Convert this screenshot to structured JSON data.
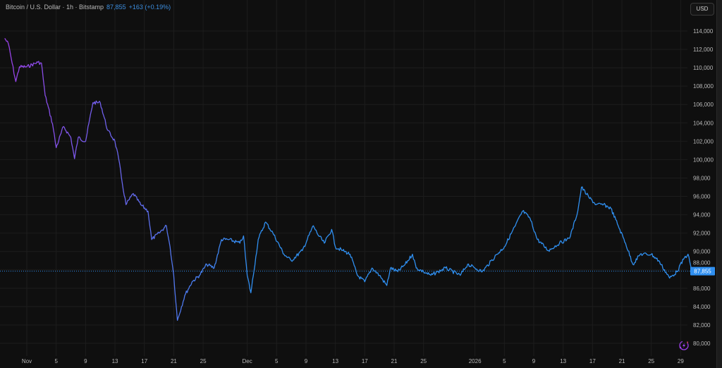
{
  "header": {
    "symbol_title": "Bitcoin / U.S. Dollar · 1h · Bitstamp",
    "last_price": "87,855",
    "change": "+163 (+0.19%)"
  },
  "currency_button": "USD",
  "colors": {
    "background": "#0f0f0f",
    "line_start": "#9b3fe6",
    "line_end": "#2f8ff0",
    "price_label": "#2f8ff0",
    "grid": "#1d1d1d"
  },
  "icons": {
    "bottom_right": "replay-lightning-icon"
  },
  "chart_data": {
    "type": "line",
    "title": "Bitcoin / U.S. Dollar · 1h · Bitstamp",
    "xlabel": "",
    "ylabel": "",
    "ylim": [
      80000,
      114000
    ],
    "grid": true,
    "last_price": 87855,
    "last_price_label": "87,855",
    "y_ticks": [
      "80,000",
      "82,000",
      "84,000",
      "86,000",
      "88,000",
      "90,000",
      "92,000",
      "94,000",
      "96,000",
      "98,000",
      "100,000",
      "102,000",
      "104,000",
      "106,000",
      "108,000",
      "110,000",
      "112,000",
      "114,000"
    ],
    "x_ticks": [
      {
        "date": "2025-11-01",
        "label": "Nov"
      },
      {
        "date": "2025-11-05",
        "label": "5"
      },
      {
        "date": "2025-11-09",
        "label": "9"
      },
      {
        "date": "2025-11-13",
        "label": "13"
      },
      {
        "date": "2025-11-17",
        "label": "17"
      },
      {
        "date": "2025-11-21",
        "label": "21"
      },
      {
        "date": "2025-11-25",
        "label": "25"
      },
      {
        "date": "2025-12-01",
        "label": "Dec"
      },
      {
        "date": "2025-12-05",
        "label": "5"
      },
      {
        "date": "2025-12-09",
        "label": "9"
      },
      {
        "date": "2025-12-13",
        "label": "13"
      },
      {
        "date": "2025-12-17",
        "label": "17"
      },
      {
        "date": "2025-12-21",
        "label": "21"
      },
      {
        "date": "2025-12-25",
        "label": "25"
      },
      {
        "date": "2026-01-01",
        "label": "2026"
      },
      {
        "date": "2026-01-05",
        "label": "5"
      },
      {
        "date": "2026-01-09",
        "label": "9"
      },
      {
        "date": "2026-01-13",
        "label": "13"
      },
      {
        "date": "2026-01-17",
        "label": "17"
      },
      {
        "date": "2026-01-21",
        "label": "21"
      },
      {
        "date": "2026-01-25",
        "label": "25"
      },
      {
        "date": "2026-01-29",
        "label": "29"
      }
    ],
    "series": [
      {
        "points": [
          [
            "2025-10-29T00:00",
            113200
          ],
          [
            "2025-10-29T12:00",
            112600
          ],
          [
            "2025-10-30T00:00",
            110500
          ],
          [
            "2025-10-30T12:00",
            108500
          ],
          [
            "2025-10-31T00:00",
            110100
          ],
          [
            "2025-11-01T00:00",
            110100
          ],
          [
            "2025-11-02T12:00",
            110600
          ],
          [
            "2025-11-03T00:00",
            110500
          ],
          [
            "2025-11-03T12:00",
            107000
          ],
          [
            "2025-11-04T12:00",
            103900
          ],
          [
            "2025-11-05T00:00",
            101300
          ],
          [
            "2025-11-06T00:00",
            103600
          ],
          [
            "2025-11-07T00:00",
            102400
          ],
          [
            "2025-11-07T12:00",
            100100
          ],
          [
            "2025-11-08T00:00",
            102400
          ],
          [
            "2025-11-09T00:00",
            102000
          ],
          [
            "2025-11-10T00:00",
            106200
          ],
          [
            "2025-11-11T00:00",
            106200
          ],
          [
            "2025-11-12T00:00",
            103200
          ],
          [
            "2025-11-13T00:00",
            102000
          ],
          [
            "2025-11-13T12:00",
            100100
          ],
          [
            "2025-11-14T00:00",
            97400
          ],
          [
            "2025-11-14T12:00",
            95100
          ],
          [
            "2025-11-15T12:00",
            96300
          ],
          [
            "2025-11-16T12:00",
            95100
          ],
          [
            "2025-11-17T12:00",
            94400
          ],
          [
            "2025-11-18T00:00",
            91300
          ],
          [
            "2025-11-19T00:00",
            92000
          ],
          [
            "2025-11-20T00:00",
            92800
          ],
          [
            "2025-11-20T12:00",
            90500
          ],
          [
            "2025-11-21T00:00",
            87400
          ],
          [
            "2025-11-21T12:00",
            82500
          ],
          [
            "2025-11-22T12:00",
            85200
          ],
          [
            "2025-11-23T12:00",
            86700
          ],
          [
            "2025-11-24T12:00",
            87400
          ],
          [
            "2025-11-25T12:00",
            88600
          ],
          [
            "2025-11-26T12:00",
            88200
          ],
          [
            "2025-11-27T12:00",
            91300
          ],
          [
            "2025-11-28T12:00",
            91300
          ],
          [
            "2025-11-30T00:00",
            90900
          ],
          [
            "2025-11-30T12:00",
            91700
          ],
          [
            "2025-12-01T00:00",
            87400
          ],
          [
            "2025-12-01T12:00",
            85500
          ],
          [
            "2025-12-02T12:00",
            91300
          ],
          [
            "2025-12-03T12:00",
            93200
          ],
          [
            "2025-12-04T12:00",
            92000
          ],
          [
            "2025-12-06T00:00",
            89700
          ],
          [
            "2025-12-07T00:00",
            89000
          ],
          [
            "2025-12-08T12:00",
            90100
          ],
          [
            "2025-12-10T00:00",
            92800
          ],
          [
            "2025-12-10T12:00",
            92000
          ],
          [
            "2025-12-11T12:00",
            90900
          ],
          [
            "2025-12-12T12:00",
            92400
          ],
          [
            "2025-12-13T00:00",
            90500
          ],
          [
            "2025-12-14T00:00",
            90100
          ],
          [
            "2025-12-15T00:00",
            89700
          ],
          [
            "2025-12-16T00:00",
            87400
          ],
          [
            "2025-12-17T00:00",
            86700
          ],
          [
            "2025-12-18T00:00",
            88200
          ],
          [
            "2025-12-19T00:00",
            87400
          ],
          [
            "2025-12-20T00:00",
            86300
          ],
          [
            "2025-12-20T12:00",
            88200
          ],
          [
            "2025-12-21T12:00",
            87800
          ],
          [
            "2025-12-22T12:00",
            88600
          ],
          [
            "2025-12-23T12:00",
            89700
          ],
          [
            "2025-12-24T00:00",
            88200
          ],
          [
            "2025-12-25T00:00",
            87800
          ],
          [
            "2025-12-26T00:00",
            87400
          ],
          [
            "2025-12-27T00:00",
            87800
          ],
          [
            "2025-12-28T00:00",
            88200
          ],
          [
            "2025-12-30T00:00",
            87400
          ],
          [
            "2025-12-31T00:00",
            88600
          ],
          [
            "2026-01-01T00:00",
            88200
          ],
          [
            "2026-01-02T00:00",
            87800
          ],
          [
            "2026-01-04T00:00",
            89700
          ],
          [
            "2026-01-05T00:00",
            90500
          ],
          [
            "2026-01-06T12:00",
            92800
          ],
          [
            "2026-01-07T12:00",
            94400
          ],
          [
            "2026-01-08T12:00",
            93600
          ],
          [
            "2026-01-09T12:00",
            91300
          ],
          [
            "2026-01-11T00:00",
            90100
          ],
          [
            "2026-01-12T12:00",
            90900
          ],
          [
            "2026-01-13T12:00",
            91300
          ],
          [
            "2026-01-14T00:00",
            91700
          ],
          [
            "2026-01-15T00:00",
            94400
          ],
          [
            "2026-01-15T12:00",
            97000
          ],
          [
            "2026-01-16T12:00",
            95900
          ],
          [
            "2026-01-17T12:00",
            95100
          ],
          [
            "2026-01-18T12:00",
            95100
          ],
          [
            "2026-01-19T12:00",
            94700
          ],
          [
            "2026-01-20T12:00",
            92800
          ],
          [
            "2026-01-21T12:00",
            90900
          ],
          [
            "2026-01-22T12:00",
            88600
          ],
          [
            "2026-01-23T12:00",
            89700
          ],
          [
            "2026-01-25T00:00",
            89700
          ],
          [
            "2026-01-26T00:00",
            89000
          ],
          [
            "2026-01-27T12:00",
            87100
          ],
          [
            "2026-01-28T12:00",
            87800
          ],
          [
            "2026-01-29T12:00",
            89300
          ],
          [
            "2026-01-30T00:00",
            89700
          ],
          [
            "2026-01-30T12:00",
            87855
          ]
        ]
      }
    ]
  }
}
